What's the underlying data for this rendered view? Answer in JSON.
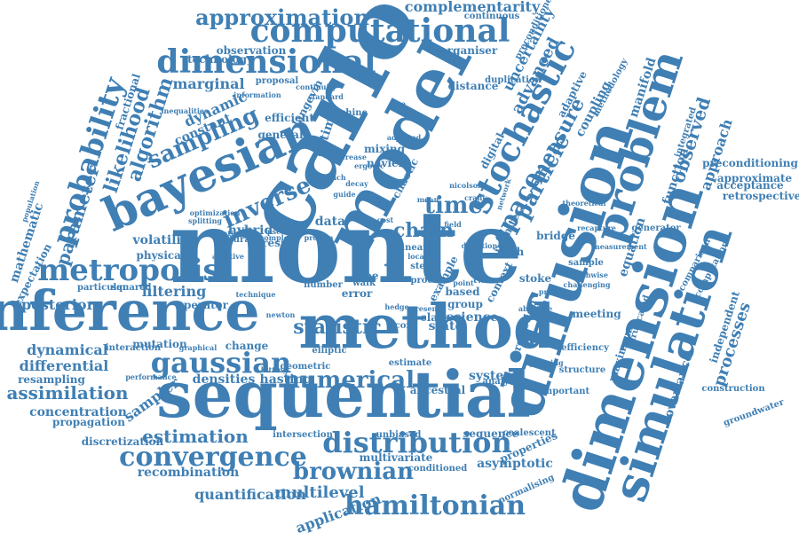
{
  "color": "#3f7fb4",
  "words": [
    "monte",
    "carlo",
    "model",
    "sequential",
    "method",
    "inference",
    "diffusion",
    "dimension",
    "simulation",
    "bayesian",
    "problem",
    "stochastic",
    "computational",
    "dimensional",
    "approximation",
    "metropolis",
    "probability",
    "gaussian",
    "distribution",
    "convergence",
    "hamiltonian",
    "sampling",
    "inverse",
    "time",
    "likelihood",
    "algorithm",
    "parameter",
    "particle",
    "space",
    "measure",
    "numerical",
    "statistic",
    "chain",
    "brownian",
    "estimation",
    "assimilation",
    "complementarity",
    "advanced",
    "uncertainty",
    "observed",
    "approach",
    "processes",
    "manifold",
    "coupling",
    "equation",
    "function",
    "covariance",
    "multilevel",
    "application",
    "quantification",
    "asymptotic",
    "system",
    "filtering",
    "dynamic",
    "marginal",
    "constant",
    "posterior",
    "differential",
    "dynamical",
    "sampler",
    "concentration",
    "recombination",
    "discretization",
    "propagation",
    "resampling",
    "mathematic",
    "expectation",
    "particular",
    "squared",
    "volatility",
    "physical",
    "hybrid",
    "data",
    "filter",
    "result",
    "natural",
    "operator",
    "mutation",
    "change",
    "densities",
    "hasting",
    "mixing",
    "navier",
    "optimal",
    "langevin",
    "fractional",
    "proposal",
    "observation",
    "technology",
    "organiser",
    "continuous",
    "preconditioned",
    "adaptive",
    "methodology",
    "infinite",
    "state",
    "science",
    "preconditioning",
    "approximate",
    "acceptance",
    "retrospective",
    "independent",
    "maximum",
    "truncated",
    "meeting",
    "rejection",
    "context",
    "stoke",
    "path",
    "bridge",
    "construction",
    "groundwater",
    "sequence",
    "properties",
    "unbiased",
    "ancestral",
    "normalising",
    "coalescent",
    "intersection",
    "conditioned",
    "multivariate",
    "elliptic",
    "geometric",
    "efficiency",
    "structure",
    "important",
    "comparison",
    "computation",
    "generator",
    "integrated",
    "efficient",
    "general",
    "machine",
    "duplication",
    "distance",
    "digital",
    "chaotic",
    "class",
    "example",
    "score",
    "tree",
    "error",
    "based",
    "group",
    "linear",
    "walk",
    "twin",
    "estimate",
    "analysis",
    "interaction",
    "graphical",
    "hitting",
    "population",
    "inequalities",
    "performance",
    "sample",
    "pathwise",
    "recapture",
    "network",
    "continuity",
    "information",
    "challenging",
    "pricing",
    "absolute",
    "protein",
    "complex",
    "pseudo",
    "iterative",
    "hedge",
    "present",
    "jumping",
    "target",
    "proc",
    "step",
    "point",
    "local",
    "direction",
    "additive",
    "splitting",
    "nicolson",
    "crank",
    "theoretical",
    "measurement",
    "optimization",
    "technique",
    "number",
    "ergodic",
    "increase",
    "decay",
    "adjusted",
    "free",
    "standard",
    "newton",
    "branch",
    "guide",
    "cost",
    "mean",
    "field"
  ]
}
